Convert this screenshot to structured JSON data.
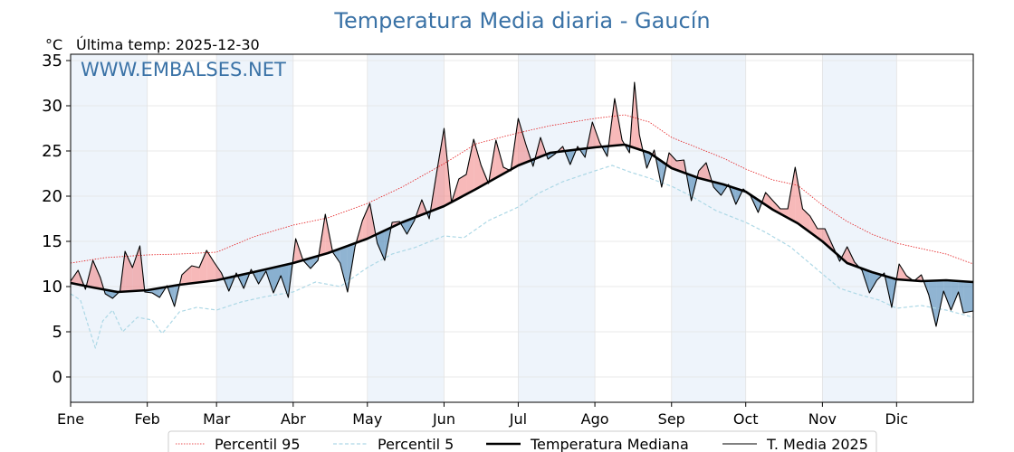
{
  "chart_data": {
    "type": "line",
    "title": "Temperatura Media diaria - Gaucín",
    "unit_label": "°C",
    "last_temp_label": "Última temp: 2025-12-30",
    "watermark": "WWW.EMBALSES.NET",
    "xlabel": "",
    "ylabel": "",
    "ylim": [
      -2.8,
      35.7
    ],
    "yticks": [
      0,
      5,
      10,
      15,
      20,
      25,
      30,
      35
    ],
    "xlim": [
      1,
      366
    ],
    "month_ticks": [
      {
        "label": "Ene",
        "day": 1
      },
      {
        "label": "Feb",
        "day": 32
      },
      {
        "label": "Mar",
        "day": 60
      },
      {
        "label": "Abr",
        "day": 91
      },
      {
        "label": "May",
        "day": 121
      },
      {
        "label": "Jun",
        "day": 152
      },
      {
        "label": "Jul",
        "day": 182
      },
      {
        "label": "Ago",
        "day": 213
      },
      {
        "label": "Sep",
        "day": 244
      },
      {
        "label": "Oct",
        "day": 274
      },
      {
        "label": "Nov",
        "day": 305
      },
      {
        "label": "Dic",
        "day": 335
      }
    ],
    "shaded_months": [
      "Ene",
      "Mar",
      "May",
      "Jul",
      "Sep",
      "Nov"
    ],
    "grid": true,
    "legend_position": "bottom-center",
    "fill_colors": {
      "above": "#f08080",
      "below": "#4682b4"
    },
    "series": [
      {
        "name": "Percentil 95",
        "style": "dotted",
        "color": "#e41a1c",
        "points": [
          [
            1,
            12.6
          ],
          [
            15,
            13.2
          ],
          [
            32,
            13.5
          ],
          [
            45,
            13.6
          ],
          [
            60,
            13.8
          ],
          [
            75,
            15.5
          ],
          [
            91,
            16.8
          ],
          [
            105,
            17.6
          ],
          [
            121,
            19.2
          ],
          [
            135,
            21.0
          ],
          [
            152,
            23.6
          ],
          [
            165,
            25.8
          ],
          [
            182,
            27.0
          ],
          [
            195,
            27.8
          ],
          [
            213,
            28.6
          ],
          [
            225,
            29.0
          ],
          [
            235,
            28.2
          ],
          [
            244,
            26.5
          ],
          [
            255,
            25.3
          ],
          [
            265,
            24.2
          ],
          [
            274,
            23.0
          ],
          [
            285,
            21.8
          ],
          [
            295,
            21.2
          ],
          [
            305,
            19.0
          ],
          [
            315,
            17.2
          ],
          [
            325,
            15.8
          ],
          [
            335,
            14.8
          ],
          [
            345,
            14.2
          ],
          [
            355,
            13.6
          ],
          [
            366,
            12.5
          ]
        ]
      },
      {
        "name": "Percentil 5",
        "style": "dashed",
        "color": "#add8e6",
        "points": [
          [
            1,
            9.2
          ],
          [
            5,
            8.5
          ],
          [
            8,
            5.8
          ],
          [
            11,
            3.2
          ],
          [
            14,
            6.2
          ],
          [
            18,
            7.4
          ],
          [
            22,
            5.0
          ],
          [
            28,
            6.6
          ],
          [
            34,
            6.3
          ],
          [
            38,
            4.8
          ],
          [
            45,
            7.2
          ],
          [
            52,
            7.7
          ],
          [
            60,
            7.4
          ],
          [
            70,
            8.3
          ],
          [
            80,
            8.9
          ],
          [
            91,
            9.4
          ],
          [
            100,
            10.5
          ],
          [
            110,
            10.0
          ],
          [
            121,
            12.1
          ],
          [
            131,
            13.6
          ],
          [
            140,
            14.3
          ],
          [
            152,
            15.6
          ],
          [
            160,
            15.4
          ],
          [
            170,
            17.3
          ],
          [
            182,
            18.8
          ],
          [
            190,
            20.3
          ],
          [
            200,
            21.6
          ],
          [
            213,
            22.8
          ],
          [
            220,
            23.4
          ],
          [
            228,
            22.6
          ],
          [
            235,
            22.0
          ],
          [
            244,
            21.1
          ],
          [
            252,
            20.0
          ],
          [
            262,
            18.4
          ],
          [
            274,
            17.1
          ],
          [
            282,
            16.0
          ],
          [
            292,
            14.4
          ],
          [
            305,
            11.4
          ],
          [
            312,
            9.8
          ],
          [
            320,
            9.1
          ],
          [
            328,
            8.5
          ],
          [
            335,
            7.6
          ],
          [
            345,
            7.9
          ],
          [
            355,
            7.4
          ],
          [
            366,
            6.6
          ]
        ]
      },
      {
        "name": "Temperatura Mediana",
        "style": "solid-thick",
        "color": "#000000",
        "points": [
          [
            1,
            10.4
          ],
          [
            10,
            9.9
          ],
          [
            20,
            9.4
          ],
          [
            32,
            9.6
          ],
          [
            45,
            10.2
          ],
          [
            60,
            10.7
          ],
          [
            75,
            11.6
          ],
          [
            91,
            12.6
          ],
          [
            105,
            13.7
          ],
          [
            121,
            15.3
          ],
          [
            135,
            17.1
          ],
          [
            152,
            18.9
          ],
          [
            165,
            20.8
          ],
          [
            182,
            23.4
          ],
          [
            195,
            24.8
          ],
          [
            213,
            25.4
          ],
          [
            225,
            25.7
          ],
          [
            235,
            24.8
          ],
          [
            244,
            23.1
          ],
          [
            255,
            22.0
          ],
          [
            265,
            21.3
          ],
          [
            274,
            20.5
          ],
          [
            285,
            18.5
          ],
          [
            295,
            17.0
          ],
          [
            305,
            15.0
          ],
          [
            315,
            12.6
          ],
          [
            325,
            11.6
          ],
          [
            335,
            10.8
          ],
          [
            345,
            10.6
          ],
          [
            355,
            10.7
          ],
          [
            366,
            10.5
          ]
        ]
      },
      {
        "name": "T. Media 2025",
        "style": "solid-thin",
        "color": "#000000",
        "points": [
          [
            1,
            10.6
          ],
          [
            4,
            11.8
          ],
          [
            7,
            9.7
          ],
          [
            10,
            12.9
          ],
          [
            13,
            11.0
          ],
          [
            15,
            9.2
          ],
          [
            18,
            8.7
          ],
          [
            21,
            9.5
          ],
          [
            23,
            13.9
          ],
          [
            26,
            12.1
          ],
          [
            29,
            14.5
          ],
          [
            31,
            9.4
          ],
          [
            34,
            9.3
          ],
          [
            37,
            8.8
          ],
          [
            40,
            10.1
          ],
          [
            43,
            7.8
          ],
          [
            46,
            11.3
          ],
          [
            50,
            12.3
          ],
          [
            53,
            12.1
          ],
          [
            56,
            14.0
          ],
          [
            59,
            12.7
          ],
          [
            62,
            11.5
          ],
          [
            65,
            9.5
          ],
          [
            68,
            11.5
          ],
          [
            71,
            9.8
          ],
          [
            74,
            11.9
          ],
          [
            77,
            10.3
          ],
          [
            80,
            11.7
          ],
          [
            83,
            9.3
          ],
          [
            86,
            11.2
          ],
          [
            89,
            8.8
          ],
          [
            92,
            15.3
          ],
          [
            95,
            12.9
          ],
          [
            98,
            12.0
          ],
          [
            101,
            12.9
          ],
          [
            104,
            18.0
          ],
          [
            107,
            13.8
          ],
          [
            110,
            12.6
          ],
          [
            113,
            9.4
          ],
          [
            116,
            14.4
          ],
          [
            119,
            17.3
          ],
          [
            122,
            19.2
          ],
          [
            125,
            14.8
          ],
          [
            128,
            12.9
          ],
          [
            131,
            17.1
          ],
          [
            134,
            17.2
          ],
          [
            137,
            15.8
          ],
          [
            140,
            17.3
          ],
          [
            143,
            19.6
          ],
          [
            146,
            17.5
          ],
          [
            149,
            22.6
          ],
          [
            152,
            27.5
          ],
          [
            155,
            19.3
          ],
          [
            158,
            21.9
          ],
          [
            161,
            22.4
          ],
          [
            164,
            26.3
          ],
          [
            167,
            23.4
          ],
          [
            170,
            21.4
          ],
          [
            173,
            26.2
          ],
          [
            176,
            23.2
          ],
          [
            179,
            22.8
          ],
          [
            182,
            28.6
          ],
          [
            185,
            25.8
          ],
          [
            188,
            23.3
          ],
          [
            191,
            26.5
          ],
          [
            194,
            24.1
          ],
          [
            197,
            24.7
          ],
          [
            200,
            25.5
          ],
          [
            203,
            23.5
          ],
          [
            206,
            25.5
          ],
          [
            209,
            24.3
          ],
          [
            212,
            28.2
          ],
          [
            215,
            25.9
          ],
          [
            218,
            24.4
          ],
          [
            221,
            30.8
          ],
          [
            224,
            26.2
          ],
          [
            227,
            24.8
          ],
          [
            229,
            32.6
          ],
          [
            231,
            26.8
          ],
          [
            234,
            23.1
          ],
          [
            237,
            25.1
          ],
          [
            240,
            21.0
          ],
          [
            243,
            24.8
          ],
          [
            246,
            23.9
          ],
          [
            249,
            24.0
          ],
          [
            252,
            19.5
          ],
          [
            255,
            22.8
          ],
          [
            258,
            23.7
          ],
          [
            261,
            21.0
          ],
          [
            264,
            20.1
          ],
          [
            267,
            21.3
          ],
          [
            270,
            19.1
          ],
          [
            273,
            20.8
          ],
          [
            276,
            20.0
          ],
          [
            279,
            18.2
          ],
          [
            282,
            20.4
          ],
          [
            285,
            19.5
          ],
          [
            288,
            18.6
          ],
          [
            291,
            18.6
          ],
          [
            294,
            23.2
          ],
          [
            297,
            18.6
          ],
          [
            300,
            17.8
          ],
          [
            303,
            16.4
          ],
          [
            306,
            16.4
          ],
          [
            309,
            14.6
          ],
          [
            312,
            12.8
          ],
          [
            315,
            14.4
          ],
          [
            318,
            12.7
          ],
          [
            321,
            11.8
          ],
          [
            324,
            9.3
          ],
          [
            327,
            10.7
          ],
          [
            330,
            11.5
          ],
          [
            333,
            7.7
          ],
          [
            336,
            12.5
          ],
          [
            339,
            11.2
          ],
          [
            342,
            10.6
          ],
          [
            345,
            11.3
          ],
          [
            348,
            9.1
          ],
          [
            351,
            5.6
          ],
          [
            354,
            9.5
          ],
          [
            357,
            7.4
          ],
          [
            360,
            9.4
          ],
          [
            362,
            7.1
          ],
          [
            366,
            7.3
          ]
        ]
      }
    ]
  }
}
